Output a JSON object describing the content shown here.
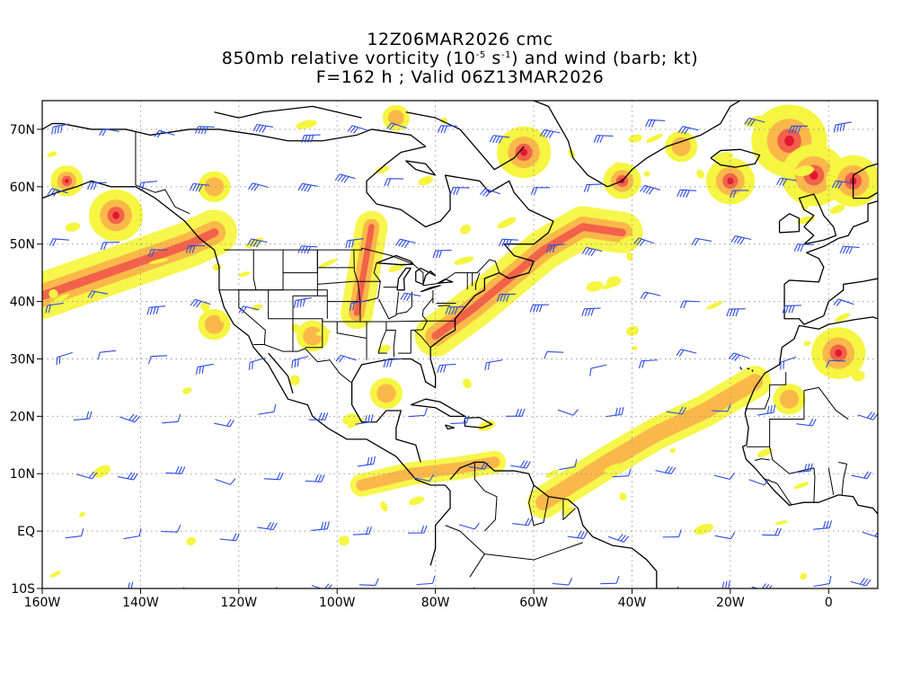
{
  "title": {
    "line1": "12Z06MAR2026 cmc",
    "line2_pre": "850mb relative vorticity (10",
    "line2_sup1": "-5",
    "line2_mid": " s",
    "line2_sup2": "-1",
    "line2_post": ") and wind (barb; kt)",
    "line3": "F=162 h ; Valid 06Z13MAR2026"
  },
  "map": {
    "lon_range": [
      -160,
      10
    ],
    "lat_range": [
      -10,
      75
    ],
    "lon_ticks": [
      {
        "value": -160,
        "label": "160W"
      },
      {
        "value": -140,
        "label": "140W"
      },
      {
        "value": -120,
        "label": "120W"
      },
      {
        "value": -100,
        "label": "100W"
      },
      {
        "value": -80,
        "label": "80W"
      },
      {
        "value": -60,
        "label": "60W"
      },
      {
        "value": -40,
        "label": "40W"
      },
      {
        "value": -20,
        "label": "20W"
      },
      {
        "value": 0,
        "label": "0"
      }
    ],
    "lat_ticks": [
      {
        "value": 70,
        "label": "70N"
      },
      {
        "value": 60,
        "label": "60N"
      },
      {
        "value": 50,
        "label": "50N"
      },
      {
        "value": 40,
        "label": "40N"
      },
      {
        "value": 30,
        "label": "30N"
      },
      {
        "value": 20,
        "label": "20N"
      },
      {
        "value": 10,
        "label": "10N"
      },
      {
        "value": 0,
        "label": "EQ"
      },
      {
        "value": -10,
        "label": "10S"
      }
    ],
    "colors": {
      "shade_light": "#f5f542",
      "shade_orange": "#fbb84a",
      "shade_red": "#f2624a",
      "shade_core": "#e01830",
      "barb": "#2c4be0",
      "coast": "#000000",
      "grid": "#9a9a9a"
    }
  },
  "vorticity_features": [
    {
      "type": "band",
      "lon": [
        -160,
        -150,
        -140,
        -130,
        -125
      ],
      "lat": [
        41,
        44,
        47,
        50,
        52
      ],
      "w": 5,
      "core": true
    },
    {
      "type": "band",
      "lon": [
        -80,
        -72,
        -65,
        -58,
        -50,
        -42
      ],
      "lat": [
        34,
        39,
        44,
        49,
        53,
        52
      ],
      "w": 4.5,
      "core": true
    },
    {
      "type": "band",
      "lon": [
        -96,
        -95,
        -94,
        -93
      ],
      "lat": [
        38,
        43,
        48,
        53
      ],
      "w": 3.5,
      "core": true
    },
    {
      "type": "band",
      "lon": [
        -58,
        -45,
        -35,
        -25,
        -15
      ],
      "lat": [
        5,
        12,
        17,
        21,
        26
      ],
      "w": 3.5,
      "core": false
    },
    {
      "type": "band",
      "lon": [
        -95,
        -85,
        -75,
        -68
      ],
      "lat": [
        8,
        10,
        11,
        12
      ],
      "w": 2.5,
      "core": false
    },
    {
      "type": "blob",
      "lon": -8,
      "lat": 68,
      "r": 7,
      "core": true
    },
    {
      "type": "blob",
      "lon": -3,
      "lat": 62,
      "r": 6,
      "core": true
    },
    {
      "type": "blob",
      "lon": -62,
      "lat": 66,
      "r": 5,
      "core": true
    },
    {
      "type": "blob",
      "lon": 5,
      "lat": 61,
      "r": 5,
      "core": true
    },
    {
      "type": "blob",
      "lon": -20,
      "lat": 61,
      "r": 4.5,
      "core": true
    },
    {
      "type": "blob",
      "lon": -145,
      "lat": 55,
      "r": 5,
      "core": true
    },
    {
      "type": "blob",
      "lon": 2,
      "lat": 31,
      "r": 5,
      "core": true
    },
    {
      "type": "blob",
      "lon": -42,
      "lat": 61,
      "r": 3.5,
      "core": true
    },
    {
      "type": "blob",
      "lon": -155,
      "lat": 61,
      "r": 3,
      "core": true
    },
    {
      "type": "blob",
      "lon": -125,
      "lat": 36,
      "r": 3,
      "core": false
    },
    {
      "type": "blob",
      "lon": -105,
      "lat": 34,
      "r": 3,
      "core": false
    },
    {
      "type": "blob",
      "lon": -90,
      "lat": 24,
      "r": 3,
      "core": false
    },
    {
      "type": "blob",
      "lon": -125,
      "lat": 60,
      "r": 3,
      "core": false
    },
    {
      "type": "blob",
      "lon": -88,
      "lat": 72,
      "r": 2.5,
      "core": false
    },
    {
      "type": "blob",
      "lon": -30,
      "lat": 67,
      "r": 3,
      "core": false
    },
    {
      "type": "blob",
      "lon": -8,
      "lat": 23,
      "r": 3,
      "core": false
    }
  ]
}
